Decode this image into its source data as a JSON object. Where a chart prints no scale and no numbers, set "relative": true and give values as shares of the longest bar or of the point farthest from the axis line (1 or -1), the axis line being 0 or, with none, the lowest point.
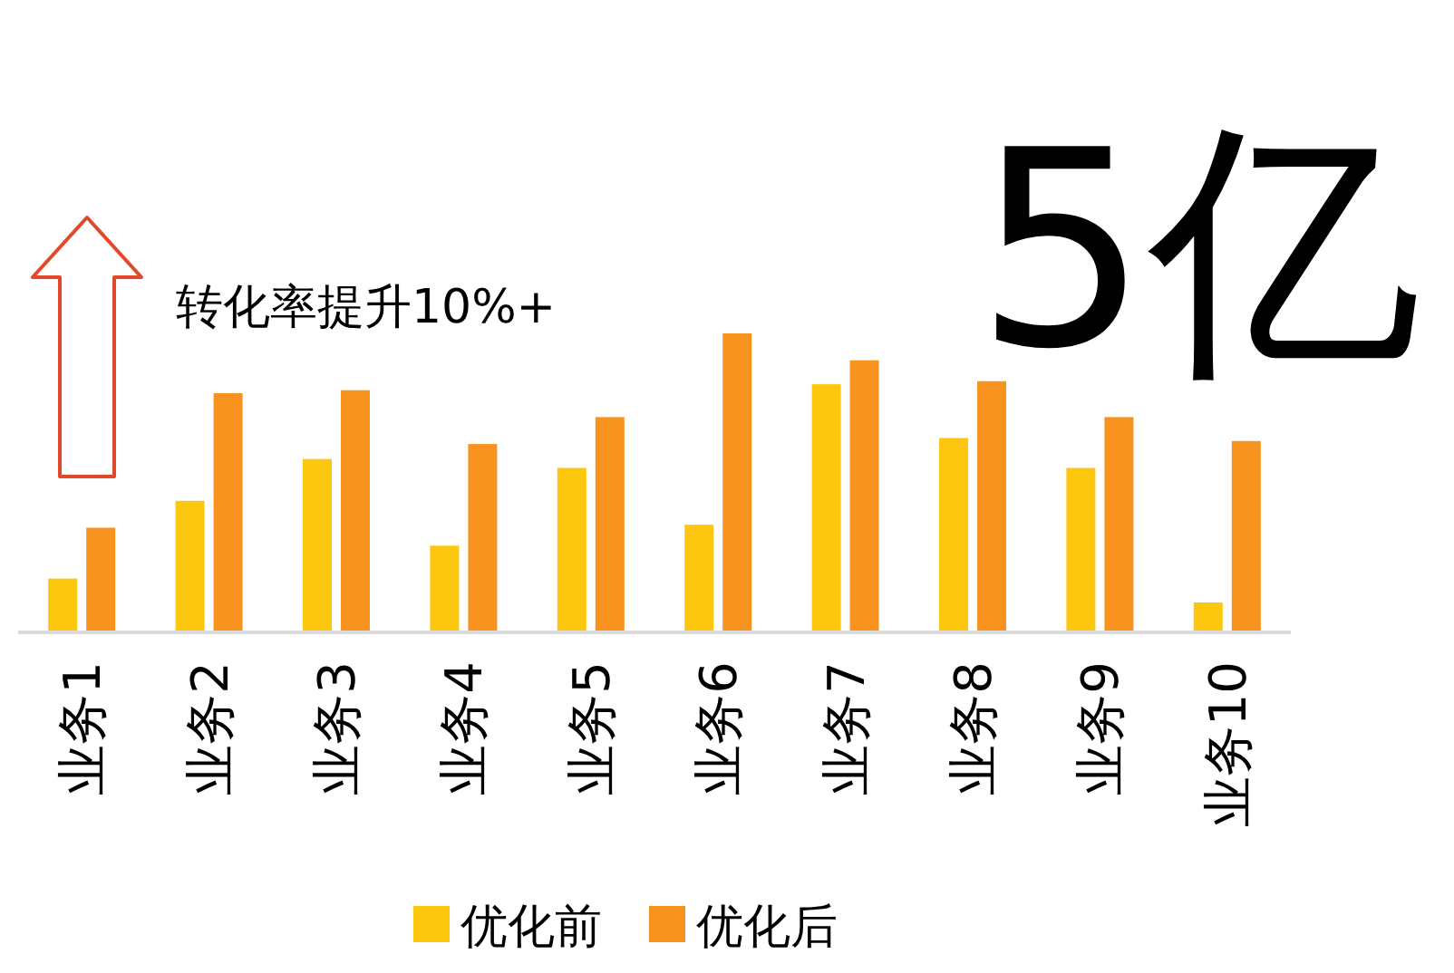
{
  "chart_data": {
    "type": "bar",
    "relative": true,
    "legend": "bottom",
    "categories": [
      "业务1",
      "业务2",
      "业务3",
      "业务4",
      "业务5",
      "业务6",
      "业务7",
      "业务8",
      "业务9",
      "业务10"
    ],
    "series": [
      {
        "name": "优化前",
        "color": "#fec70f",
        "values": [
          0.18,
          0.44,
          0.58,
          0.29,
          0.55,
          0.36,
          0.83,
          0.65,
          0.55,
          0.1
        ]
      },
      {
        "name": "优化后",
        "color": "#f7931e",
        "values": [
          0.35,
          0.8,
          0.81,
          0.63,
          0.72,
          1,
          0.91,
          0.84,
          0.72,
          0.64
        ]
      }
    ],
    "annotations": [
      "转化率提升10%+",
      "5亿"
    ]
  }
}
